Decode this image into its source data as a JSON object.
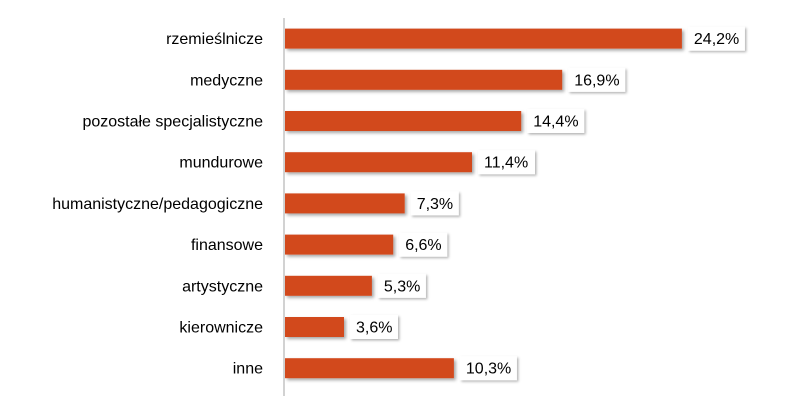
{
  "chart_data": {
    "type": "bar",
    "orientation": "horizontal",
    "categories": [
      "rzemieślnicze",
      "medyczne",
      "pozostałe specjalistyczne",
      "mundurowe",
      "humanistyczne/pedagogiczne",
      "finansowe",
      "artystyczne",
      "kierownicze",
      "inne"
    ],
    "values": [
      24.2,
      16.9,
      14.4,
      11.4,
      7.3,
      6.6,
      5.3,
      3.6,
      10.3
    ],
    "value_labels": [
      "24,2%",
      "16,9%",
      "14,4%",
      "11,4%",
      "7,3%",
      "6,6%",
      "5,3%",
      "3,6%",
      "10,3%"
    ],
    "unit": "%",
    "xlim": [
      0,
      30
    ],
    "grid": false,
    "legend": "none",
    "title": "",
    "xlabel": "",
    "ylabel": "",
    "colors": {
      "bar": "#d24a1f",
      "axis": "#a6a6a6"
    }
  }
}
